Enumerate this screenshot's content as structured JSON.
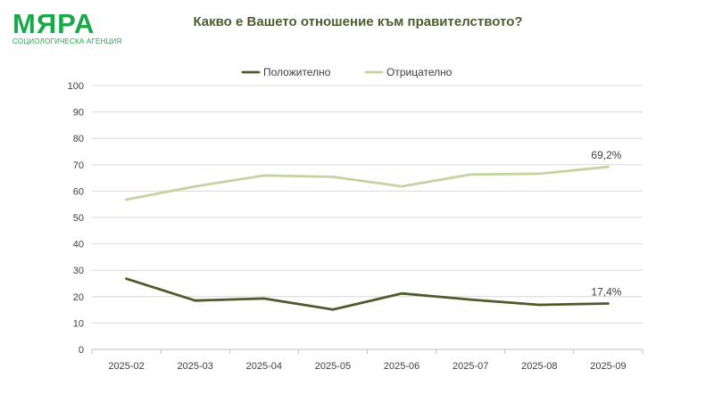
{
  "brand": {
    "name": "МЯРА",
    "subtitle": "СОЦИОЛОГИЧЕСКА АГЕНЦИЯ"
  },
  "colors": {
    "brand": "#1aa84a",
    "title": "#4b5d2e",
    "positive": "#4e5b2b",
    "negative": "#c5d3a0",
    "grid": "#d9d9d9"
  },
  "chart_data": {
    "type": "line",
    "title": "Какво е Вашето отношение към правителството?",
    "categories": [
      "2025-02",
      "2025-03",
      "2025-04",
      "2025-05",
      "2025-06",
      "2025-07",
      "2025-08",
      "2025-09"
    ],
    "series": [
      {
        "name": "Положително",
        "values": [
          26.8,
          18.5,
          19.3,
          15.1,
          21.2,
          18.9,
          16.9,
          17.4
        ],
        "color": "#4e5b2b"
      },
      {
        "name": "Отрицателно",
        "values": [
          56.8,
          61.8,
          65.9,
          65.4,
          61.8,
          66.3,
          66.6,
          69.2
        ],
        "color": "#c5d3a0"
      }
    ],
    "data_labels": [
      {
        "series": 0,
        "index": 7,
        "text": "17,4%"
      },
      {
        "series": 1,
        "index": 7,
        "text": "69,2%"
      }
    ],
    "yticks": [
      "0",
      "10",
      "20",
      "30",
      "40",
      "50",
      "60",
      "70",
      "80",
      "90",
      "100"
    ],
    "ylim": [
      0,
      100
    ],
    "grid": true,
    "legend": "top-center"
  }
}
